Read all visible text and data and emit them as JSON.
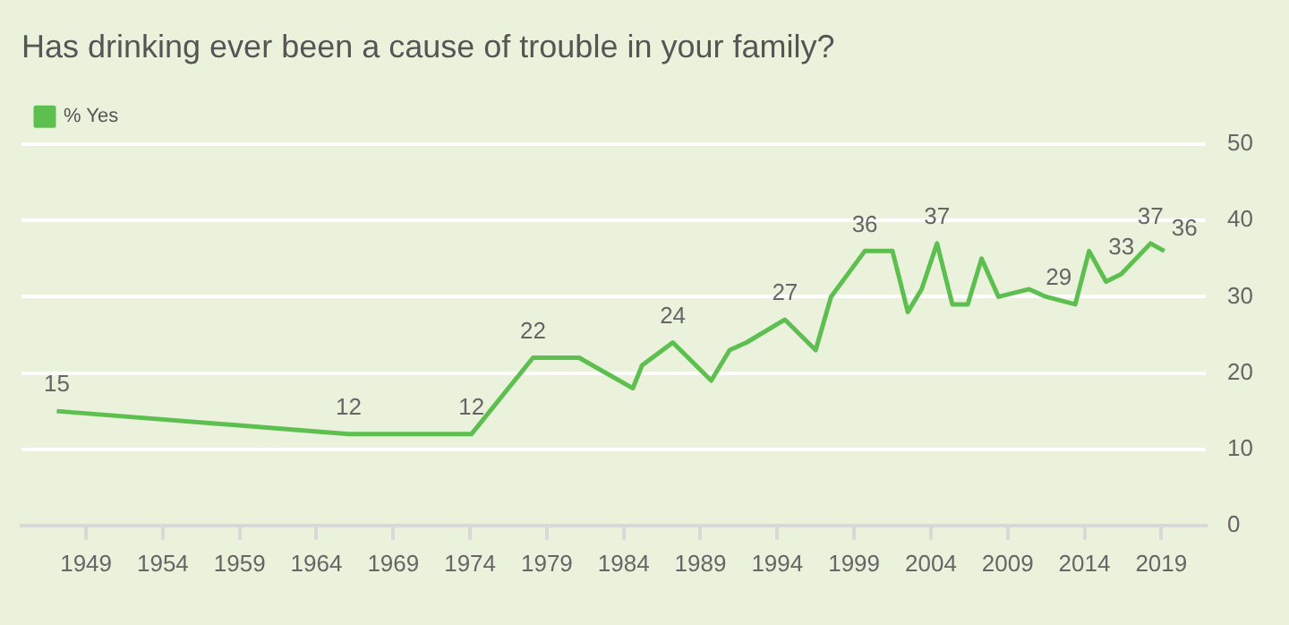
{
  "chart_data": {
    "type": "line",
    "title": "Has drinking ever been a cause of trouble in your family?",
    "x": [
      1947.1,
      1966.1,
      1974.1,
      1978.1,
      1981.1,
      1984.6,
      1985.2,
      1987.2,
      1989.7,
      1990.9,
      1992,
      1994.5,
      1996.5,
      1997.5,
      1999.7,
      2001.5,
      2002.5,
      2003.4,
      2004.4,
      2005.4,
      2006.4,
      2007.3,
      2008.4,
      2010.4,
      2011.5,
      2013.4,
      2014.3,
      2015.4,
      2016.4,
      2018.3,
      2019.2
    ],
    "series": [
      {
        "name": "% Yes",
        "color": "#5cbf4f",
        "values": [
          15,
          12,
          12,
          22,
          22,
          18,
          21,
          24,
          19,
          23,
          24,
          27,
          23,
          30,
          36,
          36,
          28,
          31,
          37,
          29,
          29,
          35,
          30,
          31,
          30,
          29,
          36,
          32,
          33,
          37,
          36
        ],
        "value_labels": [
          "15",
          "12",
          "12",
          "22",
          null,
          null,
          null,
          "24",
          null,
          null,
          null,
          "27",
          null,
          null,
          "36",
          null,
          null,
          null,
          "37",
          null,
          null,
          null,
          null,
          null,
          null,
          "29",
          null,
          null,
          "33",
          "37",
          "36"
        ]
      }
    ],
    "xlim": [
      1944.8,
      2021.9
    ],
    "xticks": [
      1949,
      1954,
      1959,
      1964,
      1969,
      1974,
      1979,
      1984,
      1989,
      1994,
      1999,
      2004,
      2009,
      2014,
      2019
    ],
    "ylim": [
      0,
      50
    ],
    "yticks": [
      0,
      10,
      20,
      30,
      40,
      50
    ],
    "grid": "y",
    "legend": "top left",
    "marker": "none",
    "line_style": "solid"
  }
}
